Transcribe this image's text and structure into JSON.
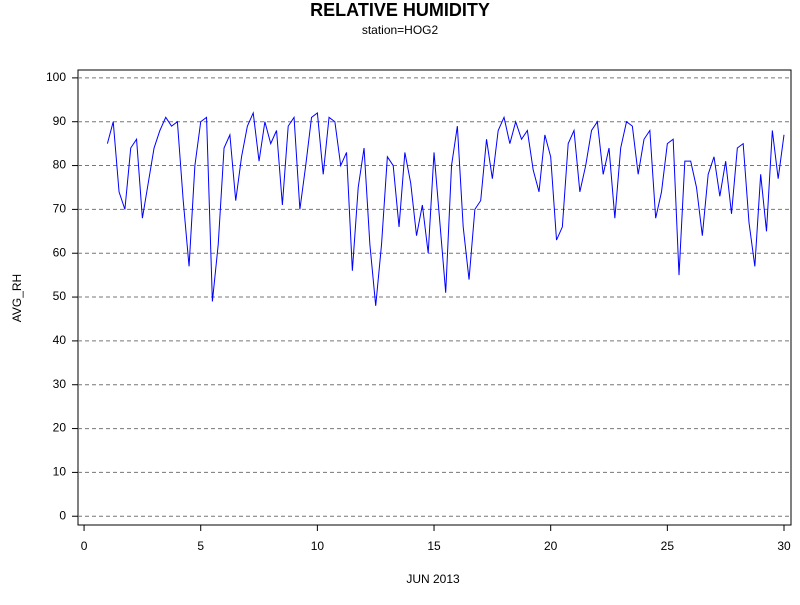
{
  "chart_data": {
    "type": "line",
    "title": "RELATIVE HUMIDITY",
    "subtitle": "station=HOG2",
    "x_label": "JUN 2013",
    "y_label": "AVG_RH",
    "x": [
      1,
      1.25,
      1.5,
      1.75,
      2,
      2.25,
      2.5,
      2.75,
      3,
      3.25,
      3.5,
      3.75,
      4,
      4.25,
      4.5,
      4.75,
      5,
      5.25,
      5.5,
      5.75,
      6,
      6.25,
      6.5,
      6.75,
      7,
      7.25,
      7.5,
      7.75,
      8,
      8.25,
      8.5,
      8.75,
      9,
      9.25,
      9.5,
      9.75,
      10,
      10.25,
      10.5,
      10.75,
      11,
      11.25,
      11.5,
      11.75,
      12,
      12.25,
      12.5,
      12.75,
      13,
      13.25,
      13.5,
      13.75,
      14,
      14.25,
      14.5,
      14.75,
      15,
      15.25,
      15.5,
      15.75,
      16,
      16.25,
      16.5,
      16.75,
      17,
      17.25,
      17.5,
      17.75,
      18,
      18.25,
      18.5,
      18.75,
      19,
      19.25,
      19.5,
      19.75,
      20,
      20.25,
      20.5,
      20.75,
      21,
      21.25,
      21.5,
      21.75,
      22,
      22.25,
      22.5,
      22.75,
      23,
      23.25,
      23.5,
      23.75,
      24,
      24.25,
      24.5,
      24.75,
      25,
      25.25,
      25.5,
      25.75,
      26,
      26.25,
      26.5,
      26.75,
      27,
      27.25,
      27.5,
      27.75,
      28,
      28.25,
      28.5,
      28.75,
      29,
      29.25,
      29.5,
      29.75,
      30
    ],
    "series": [
      {
        "name": "AVG_RH",
        "color": "#0000ff",
        "values": [
          85,
          90,
          74,
          70,
          84,
          86,
          68,
          76,
          84,
          88,
          91,
          89,
          90,
          72,
          57,
          80,
          90,
          91,
          49,
          62,
          84,
          87,
          72,
          82,
          89,
          92,
          81,
          90,
          85,
          88,
          71,
          89,
          91,
          70,
          80,
          91,
          92,
          78,
          91,
          90,
          80,
          83,
          56,
          75,
          84,
          62,
          48,
          62,
          82,
          80,
          66,
          83,
          76,
          64,
          71,
          60,
          83,
          67,
          51,
          80,
          89,
          66,
          54,
          70,
          72,
          86,
          77,
          88,
          91,
          85,
          90,
          86,
          88,
          79,
          74,
          87,
          82,
          63,
          66,
          85,
          88,
          74,
          80,
          88,
          90,
          78,
          84,
          68,
          84,
          90,
          89,
          78,
          86,
          88,
          68,
          74,
          85,
          86,
          55,
          81,
          81,
          75,
          64,
          78,
          82,
          73,
          81,
          69,
          84,
          85,
          67,
          57,
          78,
          65,
          88,
          77,
          87
        ]
      }
    ],
    "xlim": [
      -0.26,
      30.3
    ],
    "ylim": [
      -2,
      101.8
    ],
    "xticks": [
      0,
      5,
      10,
      15,
      20,
      25,
      30
    ],
    "yticks": [
      0,
      10,
      20,
      30,
      40,
      50,
      60,
      70,
      80,
      90,
      100
    ],
    "grid": true
  }
}
